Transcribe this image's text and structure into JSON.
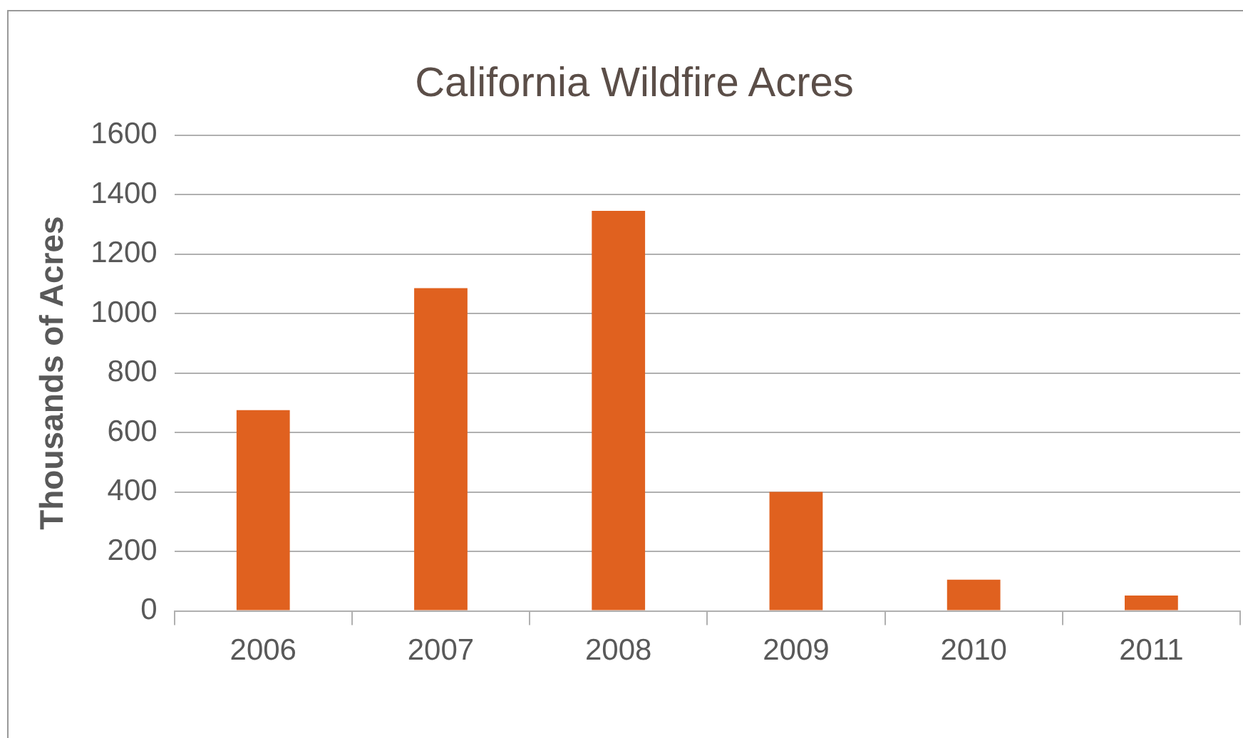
{
  "chart_data": {
    "type": "bar",
    "title": "California Wildfire Acres",
    "ylabel": "Thousands of Acres",
    "categories": [
      "2006",
      "2007",
      "2008",
      "2009",
      "2010",
      "2011"
    ],
    "values": [
      675,
      1085,
      1345,
      400,
      105,
      52
    ],
    "color": "#e0611f",
    "ylim": [
      0,
      1600
    ],
    "yticks": [
      0,
      200,
      400,
      600,
      800,
      1000,
      1200,
      1400,
      1600
    ],
    "grid": "y",
    "legend": false
  }
}
